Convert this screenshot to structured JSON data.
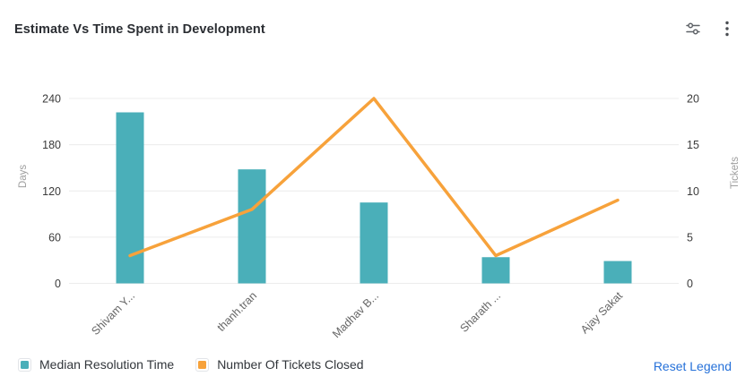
{
  "header": {
    "title": "Estimate Vs Time Spent in Development",
    "icons": {
      "filter": "sliders-icon",
      "menu": "kebab-menu-icon"
    }
  },
  "chart_data": {
    "type": "combo-bar-line",
    "title": "Estimate Vs Time Spent in Development",
    "categories": [
      "Shivam Y...",
      "thanh.tran",
      "Madhav B...",
      "Sharath ...",
      "Ajay Sakat"
    ],
    "series": [
      {
        "name": "Median Resolution Time",
        "type": "bar",
        "axis": "left",
        "color": "#4AAFB9",
        "values": [
          222,
          148,
          105,
          34,
          29
        ]
      },
      {
        "name": "Number Of Tickets Closed",
        "type": "line",
        "axis": "right",
        "color": "#F7A23B",
        "values": [
          3,
          8,
          20,
          3,
          9
        ]
      }
    ],
    "left_axis": {
      "label": "Days",
      "min": 0,
      "max": 240,
      "ticks": [
        0,
        60,
        120,
        180,
        240
      ]
    },
    "right_axis": {
      "label": "Tickets",
      "min": 0,
      "max": 20,
      "ticks": [
        0,
        5,
        10,
        15,
        20
      ]
    },
    "grid": true,
    "legend_position": "bottom",
    "x_label_rotation": -45
  },
  "legend": {
    "reset_label": "Reset Legend",
    "reset_color": "#2671D9"
  },
  "colors": {
    "grid_line": "#ececec",
    "tick_text": "#3b3b3b",
    "axis_name_text": "#9e9e9e",
    "x_label_text": "#666666",
    "icon": "#5f6368"
  }
}
